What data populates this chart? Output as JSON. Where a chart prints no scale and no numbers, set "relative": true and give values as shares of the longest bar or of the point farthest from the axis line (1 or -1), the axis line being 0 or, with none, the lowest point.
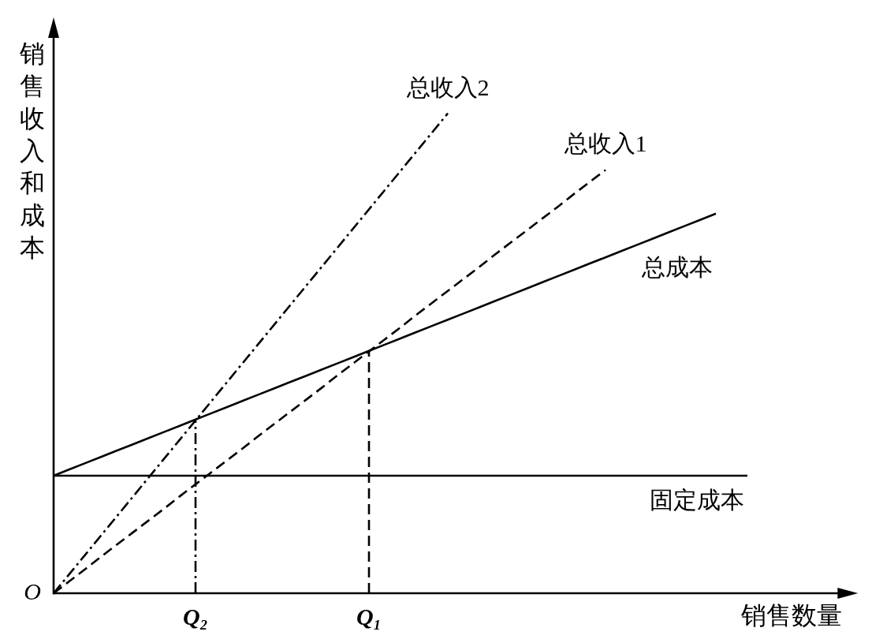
{
  "chart_data": {
    "type": "line",
    "relative": true,
    "xlabel": "销售数量",
    "ylabel": "销售收入和成本",
    "categories": [
      null,
      null,
      null,
      null,
      null,
      null,
      null,
      null,
      null,
      "Q₂",
      null,
      null,
      null,
      null,
      null,
      null,
      null,
      null,
      null,
      null,
      "Q₁",
      null,
      null,
      null,
      null,
      null,
      null,
      null,
      null,
      null,
      null,
      null,
      null,
      null,
      null,
      null,
      null,
      null,
      null,
      null,
      null,
      null,
      null,
      null,
      null,
      null,
      null,
      null,
      null,
      null,
      null,
      null
    ],
    "annotations": [
      "O"
    ],
    "series": [
      {
        "name": "总收入2",
        "color": "#000000",
        "line_style": "dashdot",
        "values": [
          0,
          0.04,
          0.08,
          0.12,
          0.16,
          0.2,
          0.24,
          0.28,
          0.32,
          0.36,
          0.4,
          0.44,
          0.48,
          0.52,
          0.56,
          0.6,
          0.64,
          0.68,
          0.72,
          0.76,
          0.8,
          0.84,
          0.88,
          0.92,
          0.96,
          1.0,
          null,
          null,
          null,
          null,
          null,
          null,
          null,
          null,
          null,
          null,
          null,
          null,
          null,
          null,
          null,
          null,
          null,
          null,
          null,
          null,
          null,
          null,
          null,
          null,
          null,
          null
        ]
      },
      {
        "name": "总收入1",
        "color": "#000000",
        "line_style": "dashed",
        "values": [
          0,
          0.025,
          0.05,
          0.076,
          0.101,
          0.126,
          0.151,
          0.176,
          0.202,
          0.227,
          0.252,
          0.277,
          0.302,
          0.328,
          0.353,
          0.378,
          0.403,
          0.428,
          0.454,
          0.479,
          0.504,
          0.529,
          0.554,
          0.58,
          0.605,
          0.63,
          0.655,
          0.68,
          0.706,
          0.731,
          0.756,
          0.781,
          0.806,
          0.832,
          0.857,
          0.882,
          null,
          null,
          null,
          null,
          null,
          null,
          null,
          null,
          null,
          null,
          null,
          null,
          null,
          null,
          null,
          null
        ]
      },
      {
        "name": "总成本",
        "color": "#000000",
        "line_style": "solid",
        "values": [
          0.245,
          0.258,
          0.271,
          0.284,
          0.297,
          0.31,
          0.323,
          0.336,
          0.349,
          0.362,
          0.375,
          0.388,
          0.401,
          0.414,
          0.427,
          0.44,
          0.453,
          0.466,
          0.479,
          0.492,
          0.505,
          0.518,
          0.531,
          0.544,
          0.557,
          0.57,
          0.583,
          0.596,
          0.609,
          0.622,
          0.635,
          0.648,
          0.661,
          0.674,
          0.687,
          0.7,
          0.713,
          0.726,
          0.739,
          0.752,
          0.765,
          0.778,
          0.791,
          null,
          null,
          null,
          null,
          null,
          null,
          null,
          null,
          null
        ]
      },
      {
        "name": "固定成本",
        "color": "#000000",
        "line_style": "solid",
        "values": [
          0.245,
          0.245,
          0.245,
          0.245,
          0.245,
          0.245,
          0.245,
          0.245,
          0.245,
          0.245,
          0.245,
          0.245,
          0.245,
          0.245,
          0.245,
          0.245,
          0.245,
          0.245,
          0.245,
          0.245,
          0.245,
          0.245,
          0.245,
          0.245,
          0.245,
          0.245,
          0.245,
          0.245,
          0.245,
          0.245,
          0.245,
          0.245,
          0.245,
          0.245,
          0.245,
          0.245,
          0.245,
          0.245,
          0.245,
          0.245,
          0.245,
          0.245,
          0.245,
          0.245,
          0.245,
          null,
          null,
          null,
          null,
          null,
          null,
          null
        ]
      },
      {
        "color": "#000000",
        "line_style": "dashdot",
        "x": [
          "Q₂",
          "Q₂"
        ],
        "values": [
          0,
          0.362
        ]
      },
      {
        "color": "#000000",
        "line_style": "dashed",
        "x": [
          "Q₁",
          "Q₁"
        ],
        "values": [
          0,
          0.505
        ]
      }
    ]
  }
}
